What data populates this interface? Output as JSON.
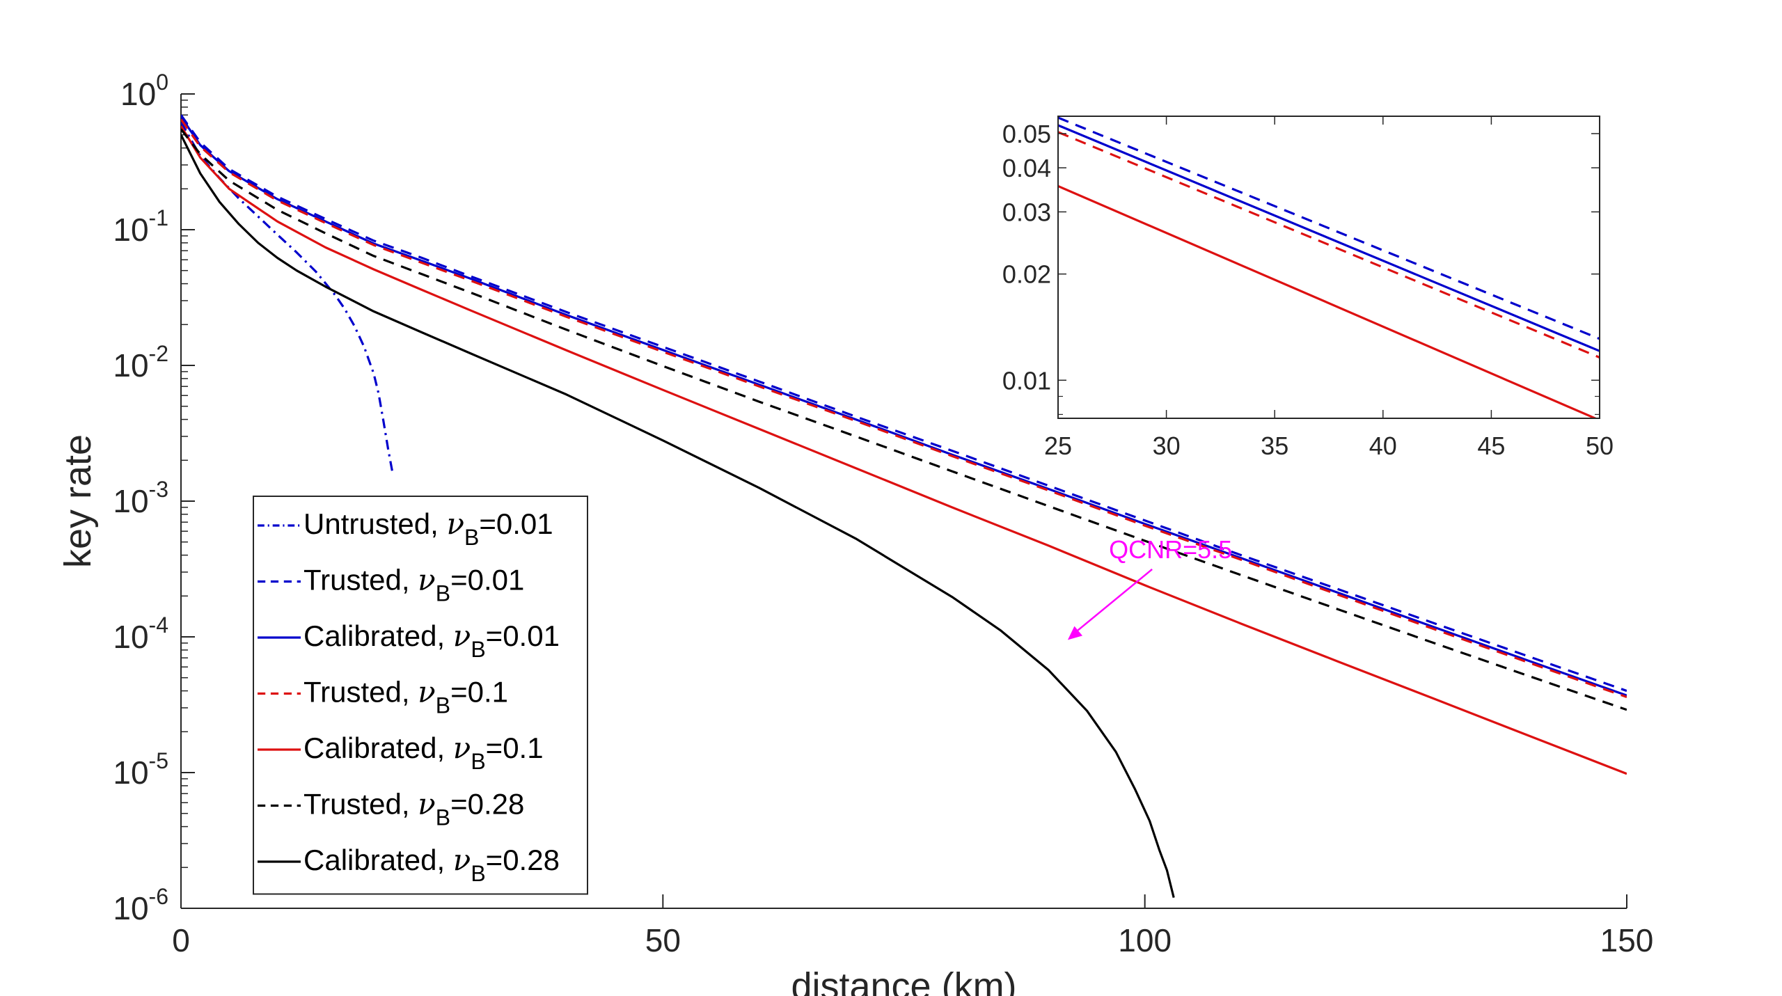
{
  "chart_data": [
    {
      "type": "line",
      "title": "",
      "xlabel": "distance (km)",
      "ylabel": "key rate",
      "xlim": [
        0,
        150
      ],
      "ylim": [
        1e-06,
        1
      ],
      "yscale": "log",
      "x_ticks": [
        0,
        50,
        100,
        150
      ],
      "x_tick_labels": [
        "0",
        "50",
        "100",
        "150"
      ],
      "y_ticks": [
        1,
        0.1,
        0.01,
        0.001,
        0.0001,
        1e-05,
        1e-06
      ],
      "y_tick_labels": [
        {
          "base": "10",
          "exp": "0"
        },
        {
          "base": "10",
          "exp": "-1"
        },
        {
          "base": "10",
          "exp": "-2"
        },
        {
          "base": "10",
          "exp": "-3"
        },
        {
          "base": "10",
          "exp": "-4"
        },
        {
          "base": "10",
          "exp": "-5"
        },
        {
          "base": "10",
          "exp": "-6"
        }
      ],
      "legend_position": "lower-left",
      "series": [
        {
          "name": "Untrusted, νB=0.01",
          "label_pre": "Untrusted, ",
          "label_sym": "ν",
          "label_sub": "B",
          "label_post": "=0.01",
          "color": "#0000cc",
          "dash": "dashdot",
          "x": [
            0,
            2,
            4,
            6,
            8,
            10,
            12,
            14,
            16,
            17,
            18,
            19,
            20,
            20.5,
            21,
            21.5,
            22
          ],
          "y": [
            0.62,
            0.35,
            0.24,
            0.17,
            0.125,
            0.092,
            0.068,
            0.049,
            0.033,
            0.026,
            0.0195,
            0.0137,
            0.0087,
            0.0062,
            0.0039,
            0.0024,
            0.00155
          ]
        },
        {
          "name": "Trusted, νB=0.01",
          "label_pre": "Trusted, ",
          "label_sym": "ν",
          "label_sub": "B",
          "label_post": "=0.01",
          "color": "#0000cc",
          "dash": "dashed",
          "x": [
            0,
            2,
            5,
            10,
            15,
            20,
            25,
            30,
            40,
            50,
            60,
            70,
            80,
            90,
            100,
            110,
            120,
            130,
            140,
            150
          ],
          "y": [
            0.7,
            0.44,
            0.28,
            0.175,
            0.12,
            0.083,
            0.062,
            0.0455,
            0.0247,
            0.0137,
            0.0076,
            0.0042,
            0.00235,
            0.0013,
            0.00072,
            0.0004,
            0.000225,
            0.000126,
            7.1e-05,
            4e-05
          ]
        },
        {
          "name": "Calibrated, νB=0.01",
          "label_pre": "Calibrated, ",
          "label_sym": "ν",
          "label_sub": "B",
          "label_post": "=0.01",
          "color": "#0000cc",
          "dash": "solid",
          "x": [
            0,
            2,
            5,
            10,
            15,
            20,
            25,
            30,
            40,
            50,
            60,
            70,
            80,
            90,
            100,
            110,
            120,
            130,
            140,
            150
          ],
          "y": [
            0.68,
            0.42,
            0.27,
            0.168,
            0.115,
            0.079,
            0.059,
            0.0437,
            0.0235,
            0.013,
            0.0072,
            0.004,
            0.0022,
            0.00123,
            0.00068,
            0.00038,
            0.000212,
            0.000118,
            6.6e-05,
            3.7e-05
          ]
        },
        {
          "name": "Trusted, νB=0.1",
          "label_pre": "Trusted, ",
          "label_sym": "ν",
          "label_sub": "B",
          "label_post": "=0.1",
          "color": "#dd1111",
          "dash": "dashed",
          "x": [
            0,
            2,
            5,
            10,
            15,
            20,
            25,
            30,
            40,
            50,
            60,
            70,
            80,
            90,
            100,
            110,
            120,
            130,
            140,
            150
          ],
          "y": [
            0.65,
            0.41,
            0.265,
            0.164,
            0.112,
            0.077,
            0.057,
            0.0423,
            0.0228,
            0.0126,
            0.007,
            0.0039,
            0.00215,
            0.0012,
            0.00066,
            0.00037,
            0.000205,
            0.000114,
            6.4e-05,
            3.6e-05
          ]
        },
        {
          "name": "Calibrated, νB=0.1",
          "label_pre": "Calibrated, ",
          "label_sym": "ν",
          "label_sub": "B",
          "label_post": "=0.1",
          "color": "#dd1111",
          "dash": "solid",
          "x": [
            0,
            2,
            5,
            10,
            15,
            20,
            25,
            30,
            40,
            50,
            60,
            70,
            80,
            90,
            100,
            110,
            120,
            130,
            140,
            150
          ],
          "y": [
            0.58,
            0.34,
            0.2,
            0.115,
            0.074,
            0.051,
            0.036,
            0.0255,
            0.0129,
            0.0066,
            0.0034,
            0.00175,
            0.0009,
            0.00047,
            0.00024,
            0.000125,
            6.6e-05,
            3.5e-05,
            1.85e-05,
            9.8e-06
          ]
        },
        {
          "name": "Trusted, νB=0.28",
          "label_pre": "Trusted, ",
          "label_sym": "ν",
          "label_sub": "B",
          "label_post": "=0.28",
          "color": "#000000",
          "dash": "dashed",
          "x": [
            0,
            2,
            5,
            10,
            15,
            20,
            25,
            30,
            40,
            50,
            60,
            70,
            80,
            90,
            100,
            110,
            120,
            130,
            140,
            150
          ],
          "y": [
            0.55,
            0.36,
            0.23,
            0.14,
            0.094,
            0.064,
            0.047,
            0.0345,
            0.0183,
            0.0099,
            0.0054,
            0.003,
            0.00166,
            0.00092,
            0.00051,
            0.000285,
            0.00016,
            9e-05,
            5.1e-05,
            2.9e-05
          ]
        },
        {
          "name": "Calibrated, νB=0.28",
          "label_pre": "Calibrated, ",
          "label_sym": "ν",
          "label_sub": "B",
          "label_post": "=0.28",
          "color": "#000000",
          "dash": "solid",
          "x": [
            0,
            2,
            4,
            6,
            8,
            10,
            12,
            15,
            20,
            25,
            30,
            40,
            50,
            60,
            70,
            80,
            85,
            90,
            94,
            97,
            99,
            100.5,
            101.5,
            102.3,
            103
          ],
          "y": [
            0.5,
            0.26,
            0.16,
            0.11,
            0.08,
            0.062,
            0.05,
            0.038,
            0.025,
            0.0175,
            0.0123,
            0.0061,
            0.0028,
            0.00125,
            0.00053,
            0.000197,
            0.000112,
            5.7e-05,
            2.85e-05,
            1.42e-05,
            7.5e-06,
            4.4e-06,
            2.7e-06,
            1.9e-06,
            1.2e-06
          ]
        }
      ],
      "annotations": [
        {
          "text": "QCNR=5.5",
          "color": "#ff00ff",
          "arrow_to": {
            "x": 92,
            "y": 9.5e-05
          },
          "text_at": {
            "x": 97,
            "y": 0.00033
          }
        }
      ]
    },
    {
      "type": "line",
      "title": "",
      "xlabel": "",
      "ylabel": "",
      "xlim": [
        25,
        50
      ],
      "ylim": [
        0.0078,
        0.056
      ],
      "yscale": "log",
      "x_ticks": [
        25,
        30,
        35,
        40,
        45,
        50
      ],
      "x_tick_labels": [
        "25",
        "30",
        "35",
        "40",
        "45",
        "50"
      ],
      "y_ticks": [
        0.01,
        0.02,
        0.03,
        0.04,
        0.05
      ],
      "y_tick_labels": [
        "0.01",
        "0.02",
        "0.03",
        "0.04",
        "0.05"
      ],
      "series": [
        {
          "name": "Trusted, νB=0.01",
          "color": "#0000cc",
          "dash": "dashed",
          "x": [
            25,
            50
          ],
          "y": [
            0.0555,
            0.0131
          ]
        },
        {
          "name": "Calibrated, νB=0.01",
          "color": "#0000cc",
          "dash": "solid",
          "x": [
            25,
            50
          ],
          "y": [
            0.0528,
            0.0121
          ]
        },
        {
          "name": "Trusted, νB=0.1",
          "color": "#dd1111",
          "dash": "dashed",
          "x": [
            25,
            50
          ],
          "y": [
            0.0505,
            0.0116
          ]
        },
        {
          "name": "Calibrated, νB=0.1",
          "color": "#dd1111",
          "dash": "solid",
          "x": [
            25,
            50
          ],
          "y": [
            0.0355,
            0.0077
          ]
        }
      ]
    }
  ]
}
